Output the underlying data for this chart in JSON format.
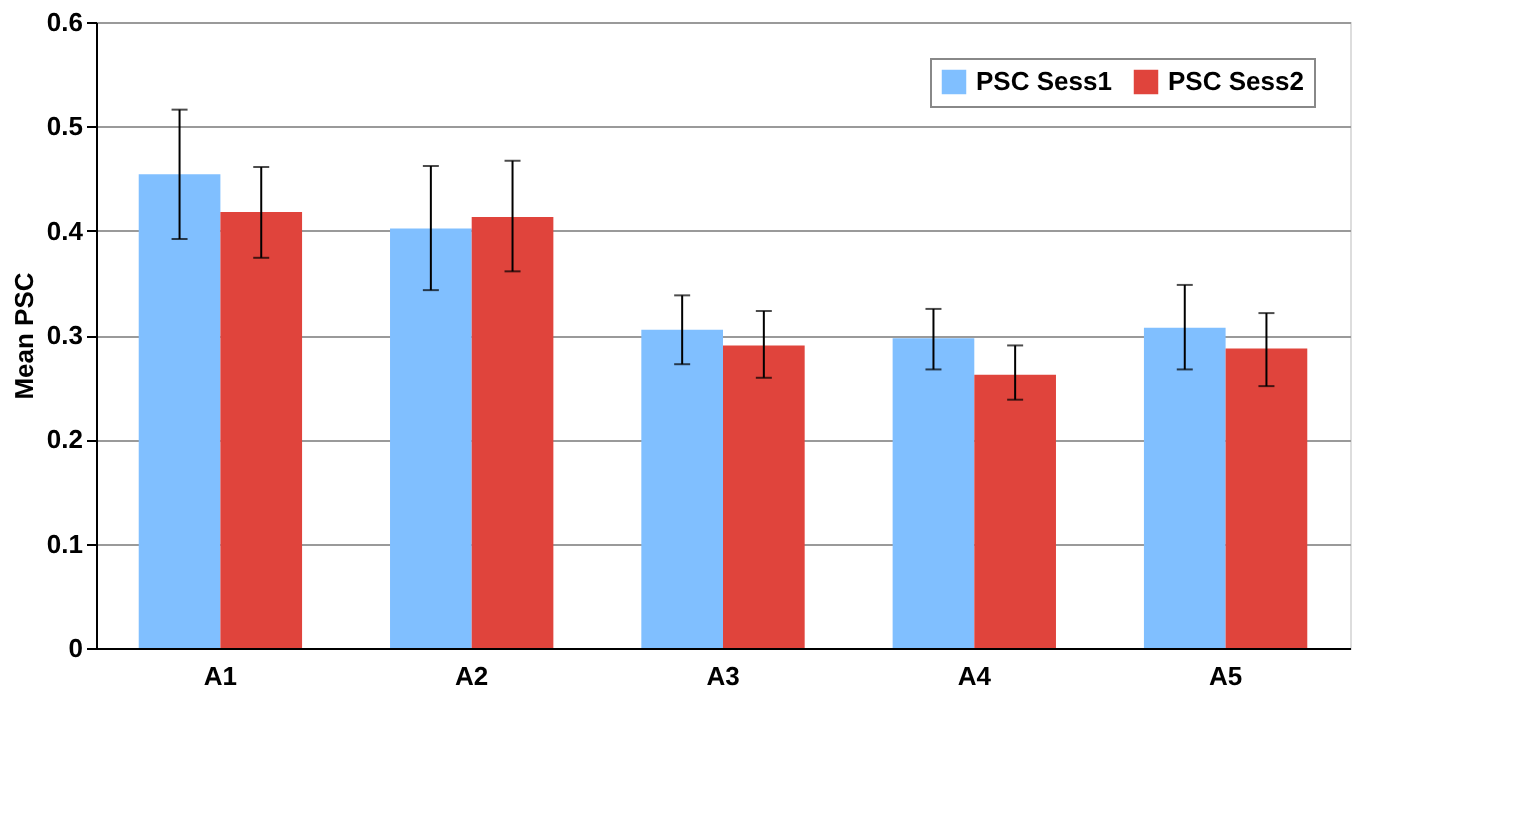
{
  "chart_data": {
    "type": "bar",
    "ylabel": "Mean PSC",
    "categories": [
      "A1",
      "A2",
      "A3",
      "A4",
      "A5"
    ],
    "series": [
      {
        "name": "PSC Sess1",
        "color": "#80bfff",
        "values": [
          0.454,
          0.402,
          0.305,
          0.297,
          0.307
        ],
        "errors": [
          [
            0.392,
            0.516
          ],
          [
            0.343,
            0.462
          ],
          [
            0.272,
            0.338
          ],
          [
            0.267,
            0.325
          ],
          [
            0.267,
            0.348
          ]
        ]
      },
      {
        "name": "PSC Sess2",
        "color": "#e0443c",
        "values": [
          0.418,
          0.413,
          0.29,
          0.262,
          0.287
        ],
        "errors": [
          [
            0.374,
            0.461
          ],
          [
            0.361,
            0.467
          ],
          [
            0.259,
            0.323
          ],
          [
            0.238,
            0.29
          ],
          [
            0.251,
            0.321
          ]
        ]
      }
    ],
    "ylim": [
      0,
      0.6
    ],
    "yticks": [
      0,
      0.1,
      0.2,
      0.3,
      0.4,
      0.5,
      0.6
    ],
    "grid": "y",
    "legend": "top right"
  }
}
